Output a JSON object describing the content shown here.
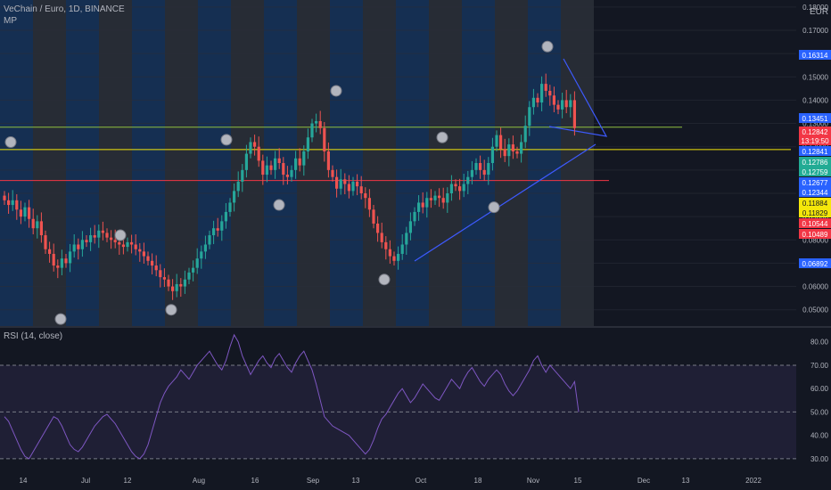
{
  "header": {
    "symbol_line": "VeChain / Euro, 1D, BINANCE",
    "indicator_label": "MP",
    "currency": "EUR"
  },
  "rsi": {
    "label": "RSI (14, close)"
  },
  "chart_data": [
    {
      "type": "candlestick",
      "title": "VeChain / Euro, 1D, BINANCE",
      "y_axis": {
        "unit": "EUR",
        "ticks": [
          "0.05000",
          "0.06000",
          "0.07000",
          "0.08000",
          "0.09000",
          "0.10000",
          "0.11000",
          "0.12000",
          "0.13000",
          "0.14000",
          "0.15000",
          "0.16000",
          "0.17000",
          "0.18000"
        ],
        "range": [
          0.043,
          0.183
        ]
      },
      "x_axis": {
        "ticks": [
          "14",
          "Jul",
          "12",
          "Aug",
          "16",
          "Sep",
          "13",
          "Oct",
          "18",
          "Nov",
          "15",
          "Dec",
          "13",
          "2022"
        ]
      },
      "price_labels": [
        {
          "text": "0.16314",
          "color": "#2962ff"
        },
        {
          "text": "0.13451",
          "color": "#2962ff"
        },
        {
          "text": "0.12842",
          "color": "#f23645"
        },
        {
          "text": "13:19:50",
          "color": "#f23645"
        },
        {
          "text": "0.12841",
          "color": "#2962ff"
        },
        {
          "text": "0.12786",
          "color": "#22ab94"
        },
        {
          "text": "0.12759",
          "color": "#22ab94"
        },
        {
          "text": "0.12677",
          "color": "#2962ff"
        },
        {
          "text": "0.12344",
          "color": "#2962ff"
        },
        {
          "text": "0.11884",
          "color": "#f5e70a"
        },
        {
          "text": "0.11829",
          "color": "#f5e70a"
        },
        {
          "text": "0.10544",
          "color": "#f23645"
        },
        {
          "text": "0.10489",
          "color": "#f23645"
        },
        {
          "text": "0.06892",
          "color": "#2962ff"
        }
      ],
      "levels": [
        {
          "name": "green-level",
          "value": 0.1284,
          "color": "#8fbf3f"
        },
        {
          "name": "yellow-level",
          "value": 0.1188,
          "color": "#f5e70a"
        },
        {
          "name": "red-level",
          "value": 0.1055,
          "color": "#f23645"
        }
      ],
      "closes": [
        0.097,
        0.095,
        0.097,
        0.093,
        0.09,
        0.094,
        0.089,
        0.085,
        0.088,
        0.082,
        0.076,
        0.074,
        0.069,
        0.068,
        0.072,
        0.07,
        0.075,
        0.078,
        0.076,
        0.08,
        0.079,
        0.082,
        0.081,
        0.084,
        0.083,
        0.081,
        0.08,
        0.079,
        0.078,
        0.077,
        0.079,
        0.078,
        0.076,
        0.075,
        0.073,
        0.071,
        0.069,
        0.067,
        0.064,
        0.063,
        0.06,
        0.058,
        0.061,
        0.06,
        0.063,
        0.066,
        0.068,
        0.072,
        0.075,
        0.078,
        0.082,
        0.085,
        0.084,
        0.088,
        0.092,
        0.096,
        0.101,
        0.105,
        0.11,
        0.117,
        0.122,
        0.12,
        0.114,
        0.108,
        0.112,
        0.11,
        0.115,
        0.113,
        0.108,
        0.107,
        0.11,
        0.115,
        0.112,
        0.118,
        0.124,
        0.13,
        0.131,
        0.128,
        0.118,
        0.11,
        0.107,
        0.102,
        0.106,
        0.104,
        0.101,
        0.105,
        0.103,
        0.1,
        0.098,
        0.093,
        0.087,
        0.083,
        0.079,
        0.076,
        0.073,
        0.071,
        0.074,
        0.078,
        0.083,
        0.088,
        0.092,
        0.096,
        0.094,
        0.098,
        0.097,
        0.099,
        0.098,
        0.096,
        0.1,
        0.104,
        0.103,
        0.101,
        0.104,
        0.107,
        0.11,
        0.113,
        0.11,
        0.108,
        0.113,
        0.12,
        0.125,
        0.119,
        0.116,
        0.121,
        0.118,
        0.117,
        0.122,
        0.129,
        0.137,
        0.141,
        0.139,
        0.147,
        0.144,
        0.142,
        0.138,
        0.136,
        0.14,
        0.137,
        0.14,
        0.128
      ],
      "swing_markers": [
        {
          "type": "low",
          "value": 0.046
        },
        {
          "type": "high",
          "value": 0.122
        },
        {
          "type": "low",
          "value": 0.082
        },
        {
          "type": "low",
          "value": 0.05
        },
        {
          "type": "high",
          "value": 0.123
        },
        {
          "type": "low",
          "value": 0.095
        },
        {
          "type": "high",
          "value": 0.144
        },
        {
          "type": "low",
          "value": 0.063
        },
        {
          "type": "high",
          "value": 0.124
        },
        {
          "type": "low",
          "value": 0.094
        },
        {
          "type": "high",
          "value": 0.163
        }
      ]
    },
    {
      "type": "line",
      "title": "RSI (14, close)",
      "y_axis": {
        "ticks": [
          "30.00",
          "40.00",
          "50.00",
          "60.00",
          "70.00",
          "80.00"
        ],
        "range": [
          25,
          86
        ]
      },
      "bands": {
        "upper": 70,
        "middle": 50,
        "lower": 30
      },
      "values": [
        48,
        46,
        42,
        38,
        34,
        31,
        30,
        33,
        36,
        39,
        42,
        45,
        48,
        47,
        44,
        40,
        36,
        34,
        33,
        35,
        38,
        41,
        44,
        46,
        48,
        49,
        47,
        45,
        42,
        39,
        36,
        33,
        31,
        30,
        32,
        36,
        42,
        48,
        54,
        58,
        61,
        63,
        65,
        68,
        66,
        64,
        67,
        70,
        72,
        74,
        76,
        73,
        70,
        68,
        72,
        78,
        83,
        80,
        74,
        70,
        66,
        69,
        72,
        74,
        71,
        69,
        73,
        75,
        72,
        69,
        67,
        71,
        74,
        76,
        72,
        68,
        62,
        55,
        48,
        46,
        44,
        43,
        42,
        41,
        40,
        38,
        36,
        34,
        32,
        34,
        38,
        43,
        47,
        49,
        52,
        55,
        58,
        60,
        57,
        54,
        56,
        59,
        62,
        60,
        58,
        56,
        55,
        58,
        61,
        64,
        62,
        60,
        64,
        67,
        69,
        66,
        63,
        61,
        64,
        66,
        68,
        66,
        62,
        59,
        57,
        59,
        62,
        65,
        68,
        72,
        74,
        70,
        67,
        70,
        68,
        66,
        64,
        62,
        60,
        63,
        50
      ]
    }
  ]
}
